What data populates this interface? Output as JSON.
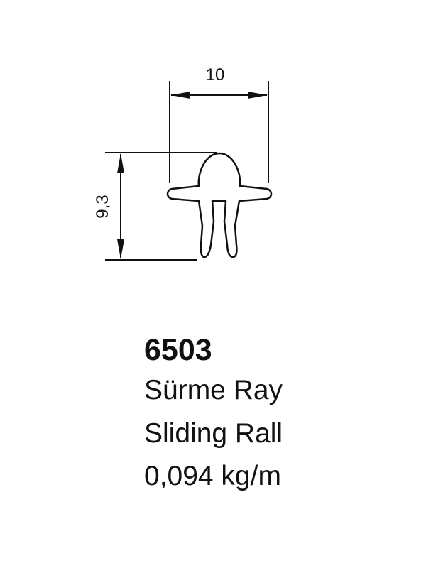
{
  "drawing": {
    "dim_width": "10",
    "dim_height": "9,3"
  },
  "product": {
    "code": "6503",
    "name_tr": "Sürme Ray",
    "name_en": "Sliding Rall",
    "weight": "0,094 kg/m"
  },
  "colors": {
    "line": "#111111",
    "background": "#ffffff"
  }
}
